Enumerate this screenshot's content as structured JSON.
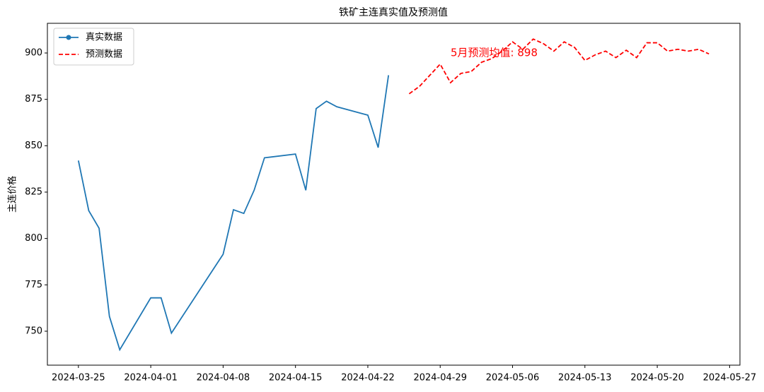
{
  "chart_data": {
    "type": "line",
    "title": "铁矿主连真实值及预测值",
    "y_label": "主连价格",
    "annotation": "5月预测均值: 898",
    "xlim": [
      "2024-03-22",
      "2024-05-28"
    ],
    "xticks": [
      "2024-03-25",
      "2024-04-01",
      "2024-04-08",
      "2024-04-15",
      "2024-04-22",
      "2024-04-29",
      "2024-05-06",
      "2024-05-13",
      "2024-05-20",
      "2024-05-27"
    ],
    "ylim": [
      731.7,
      916
    ],
    "yticks": [
      750,
      775,
      800,
      825,
      850,
      875,
      900
    ],
    "legend": "upper left",
    "series": [
      {
        "name": "真实数据",
        "color": "#1f77b4",
        "dash": false,
        "marker": true,
        "x": [
          "2024-03-25",
          "2024-03-26",
          "2024-03-27",
          "2024-03-28",
          "2024-03-29",
          "2024-04-01",
          "2024-04-02",
          "2024-04-03",
          "2024-04-08",
          "2024-04-09",
          "2024-04-10",
          "2024-04-11",
          "2024-04-12",
          "2024-04-15",
          "2024-04-16",
          "2024-04-17",
          "2024-04-18",
          "2024-04-19",
          "2024-04-22",
          "2024-04-23",
          "2024-04-24"
        ],
        "values": [
          842,
          815,
          805.5,
          758,
          740,
          768,
          768,
          749,
          791.5,
          815.5,
          813.5,
          826,
          843.5,
          845.5,
          826,
          870,
          874,
          871,
          866.5,
          849,
          888
        ]
      },
      {
        "name": "预测数据",
        "color": "#ff0000",
        "dash": true,
        "marker": false,
        "x": [
          "2024-04-26",
          "2024-04-27",
          "2024-04-28",
          "2024-04-29",
          "2024-04-30",
          "2024-05-01",
          "2024-05-02",
          "2024-05-03",
          "2024-05-04",
          "2024-05-05",
          "2024-05-06",
          "2024-05-07",
          "2024-05-08",
          "2024-05-09",
          "2024-05-10",
          "2024-05-11",
          "2024-05-12",
          "2024-05-13",
          "2024-05-14",
          "2024-05-15",
          "2024-05-16",
          "2024-05-17",
          "2024-05-18",
          "2024-05-19",
          "2024-05-20",
          "2024-05-21",
          "2024-05-22",
          "2024-05-23",
          "2024-05-24",
          "2024-05-25"
        ],
        "values": [
          878,
          882,
          888,
          894,
          884,
          889,
          890,
          895,
          897,
          901,
          906,
          902,
          907.5,
          905,
          901,
          906,
          903,
          896,
          899,
          901,
          897.5,
          901.5,
          897.5,
          905.5,
          905.5,
          901,
          902,
          901,
          902,
          899.5
        ]
      }
    ]
  }
}
